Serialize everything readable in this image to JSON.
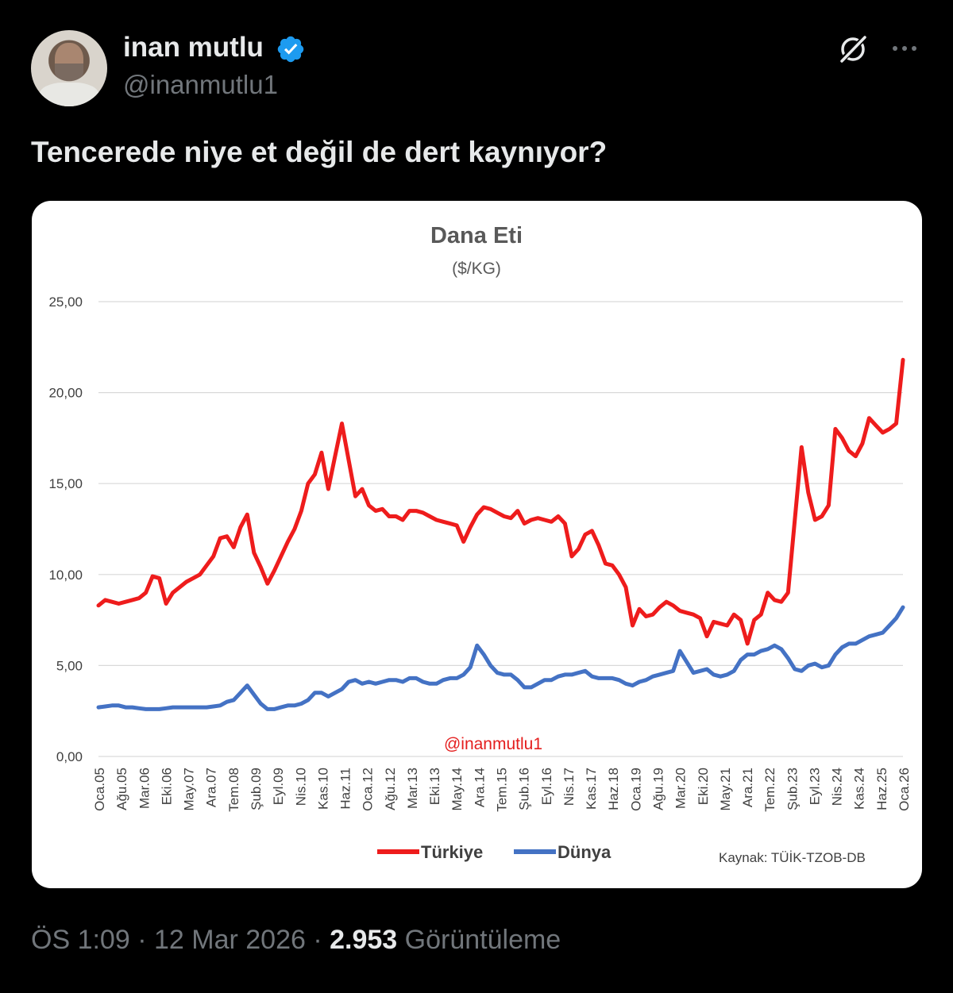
{
  "author": {
    "name": "inan mutlu",
    "handle": "@inanmutlu1",
    "verified": true,
    "avatar_icon": "avatar-photo"
  },
  "icons": {
    "grok": "grok-icon",
    "more": "more-icon",
    "verified": "verified-badge-icon"
  },
  "tweet": {
    "text": "Tencerede niye et değil de dert kaynıyor?"
  },
  "footer": {
    "time": "ÖS 1:09",
    "sep1": "·",
    "date": "12 Mar 2026",
    "sep2": "·",
    "views": "2.953",
    "views_label": "Görüntüleme"
  },
  "chart_data": {
    "type": "line",
    "title": "Dana Eti",
    "subtitle": "($/KG)",
    "watermark": "@inanmutlu1",
    "source": "Kaynak: TÜİK-TZOB-DB",
    "ylim": [
      0,
      25
    ],
    "yticks": [
      "0,00",
      "5,00",
      "10,00",
      "15,00",
      "20,00",
      "25,00"
    ],
    "grid": true,
    "legend_position": "bottom",
    "x_ticks": [
      "Oca.05",
      "Ağu.05",
      "Mar.06",
      "Eki.06",
      "May.07",
      "Ara.07",
      "Tem.08",
      "Şub.09",
      "Eyl.09",
      "Nis.10",
      "Kas.10",
      "Haz.11",
      "Oca.12",
      "Ağu.12",
      "Mar.13",
      "Eki.13",
      "May.14",
      "Ara.14",
      "Tem.15",
      "Şub.16",
      "Eyl.16",
      "Nis.17",
      "Kas.17",
      "Haz.18",
      "Oca.19",
      "Ağu.19",
      "Mar.20",
      "Eki.20",
      "May.21",
      "Ara.21",
      "Tem.22",
      "Şub.23",
      "Eyl.23",
      "Nis.24",
      "Kas.24",
      "Haz.25",
      "Oca.26"
    ],
    "series": [
      {
        "name": "Türkiye",
        "color": "#ee1c1c",
        "values": [
          8.3,
          8.6,
          8.5,
          8.4,
          8.5,
          8.6,
          8.7,
          9.0,
          9.9,
          9.8,
          8.4,
          9.0,
          9.3,
          9.6,
          9.8,
          10.0,
          10.5,
          11.0,
          12.0,
          12.1,
          11.5,
          12.6,
          13.3,
          11.2,
          10.4,
          9.5,
          10.2,
          11.0,
          11.8,
          12.5,
          13.5,
          15.0,
          15.5,
          16.7,
          14.7,
          16.5,
          18.3,
          16.3,
          14.3,
          14.7,
          13.8,
          13.5,
          13.6,
          13.2,
          13.2,
          13.0,
          13.5,
          13.5,
          13.4,
          13.2,
          13.0,
          12.9,
          12.8,
          12.7,
          11.8,
          12.6,
          13.3,
          13.7,
          13.6,
          13.4,
          13.2,
          13.1,
          13.5,
          12.8,
          13.0,
          13.1,
          13.0,
          12.9,
          13.2,
          12.8,
          11.0,
          11.4,
          12.2,
          12.4,
          11.6,
          10.6,
          10.5,
          10.0,
          9.3,
          7.2,
          8.1,
          7.7,
          7.8,
          8.2,
          8.5,
          8.3,
          8.0,
          7.9,
          7.8,
          7.6,
          6.6,
          7.4,
          7.3,
          7.2,
          7.8,
          7.5,
          6.2,
          7.5,
          7.8,
          9.0,
          8.6,
          8.5,
          9.0,
          13.0,
          17.0,
          14.5,
          13.0,
          13.2,
          13.8,
          18.0,
          17.5,
          16.8,
          16.5,
          17.2,
          18.6,
          18.2,
          17.8,
          18.0,
          18.3,
          21.8
        ]
      },
      {
        "name": "Dünya",
        "color": "#4472c4",
        "values": [
          2.7,
          2.75,
          2.8,
          2.8,
          2.7,
          2.7,
          2.65,
          2.6,
          2.6,
          2.6,
          2.65,
          2.7,
          2.7,
          2.7,
          2.7,
          2.7,
          2.7,
          2.75,
          2.8,
          3.0,
          3.1,
          3.5,
          3.9,
          3.4,
          2.9,
          2.6,
          2.6,
          2.7,
          2.8,
          2.8,
          2.9,
          3.1,
          3.5,
          3.5,
          3.3,
          3.5,
          3.7,
          4.1,
          4.2,
          4.0,
          4.1,
          4.0,
          4.1,
          4.2,
          4.2,
          4.1,
          4.3,
          4.3,
          4.1,
          4.0,
          4.0,
          4.2,
          4.3,
          4.3,
          4.5,
          4.9,
          6.1,
          5.6,
          5.0,
          4.6,
          4.5,
          4.5,
          4.2,
          3.8,
          3.8,
          4.0,
          4.2,
          4.2,
          4.4,
          4.5,
          4.5,
          4.6,
          4.7,
          4.4,
          4.3,
          4.3,
          4.3,
          4.2,
          4.0,
          3.9,
          4.1,
          4.2,
          4.4,
          4.5,
          4.6,
          4.7,
          5.8,
          5.2,
          4.6,
          4.7,
          4.8,
          4.5,
          4.4,
          4.5,
          4.7,
          5.3,
          5.6,
          5.6,
          5.8,
          5.9,
          6.1,
          5.9,
          5.4,
          4.8,
          4.7,
          5.0,
          5.1,
          4.9,
          5.0,
          5.6,
          6.0,
          6.2,
          6.2,
          6.4,
          6.6,
          6.7,
          6.8,
          7.2,
          7.6,
          8.2
        ]
      }
    ]
  }
}
